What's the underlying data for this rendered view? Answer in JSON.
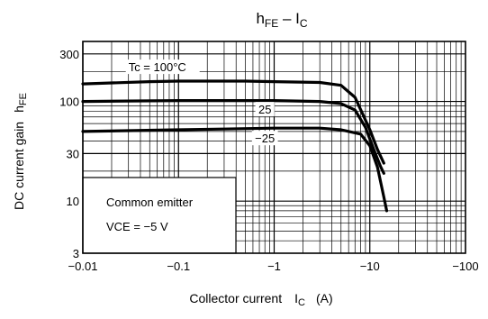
{
  "chart_data": {
    "type": "line",
    "title": {
      "main": "h",
      "sub": "FE",
      "dash": " – I",
      "sub2": "C"
    },
    "ylabel": {
      "main": "DC current gain",
      "sym": "h",
      "sub": "FE"
    },
    "xlabel": {
      "main": "Collector current",
      "sym": "I",
      "sub": "C",
      "unit": "(A)"
    },
    "x_scale": "log",
    "y_scale": "log",
    "x_direction": "negative",
    "xlim": [
      -0.01,
      -100
    ],
    "ylim": [
      3,
      400
    ],
    "x_ticks": [
      {
        "value": -0.01,
        "label": "−0.01"
      },
      {
        "value": -0.1,
        "label": "−0.1"
      },
      {
        "value": -1,
        "label": "−1"
      },
      {
        "value": -10,
        "label": "−10"
      },
      {
        "value": -100,
        "label": "−100"
      }
    ],
    "y_ticks": [
      {
        "value": 3,
        "label": "3"
      },
      {
        "value": 10,
        "label": "10"
      },
      {
        "value": 30,
        "label": "30"
      },
      {
        "value": 100,
        "label": "100"
      },
      {
        "value": 300,
        "label": "300"
      }
    ],
    "grid": true,
    "series": [
      {
        "name": "Tc = 100°C",
        "x": [
          -0.01,
          -0.05,
          -0.1,
          -0.5,
          -1,
          -3,
          -5,
          -7,
          -10,
          -12,
          -14
        ],
        "y": [
          150,
          158,
          160,
          160,
          158,
          155,
          145,
          110,
          52,
          33,
          24
        ]
      },
      {
        "name": "25",
        "x": [
          -0.01,
          -0.1,
          -1,
          -3,
          -5,
          -7,
          -9,
          -11,
          -13,
          -14
        ],
        "y": [
          100,
          102,
          102,
          100,
          95,
          82,
          55,
          33,
          22,
          19
        ]
      },
      {
        "name": "−25",
        "x": [
          -0.01,
          -0.1,
          -1,
          -3,
          -5,
          -8,
          -10,
          -12,
          -14,
          -15
        ],
        "y": [
          50,
          52,
          54,
          54,
          52,
          47,
          36,
          22,
          11,
          8
        ]
      }
    ],
    "annotation": {
      "line1": "Common emitter",
      "line2": "VCE = −5 V"
    }
  }
}
